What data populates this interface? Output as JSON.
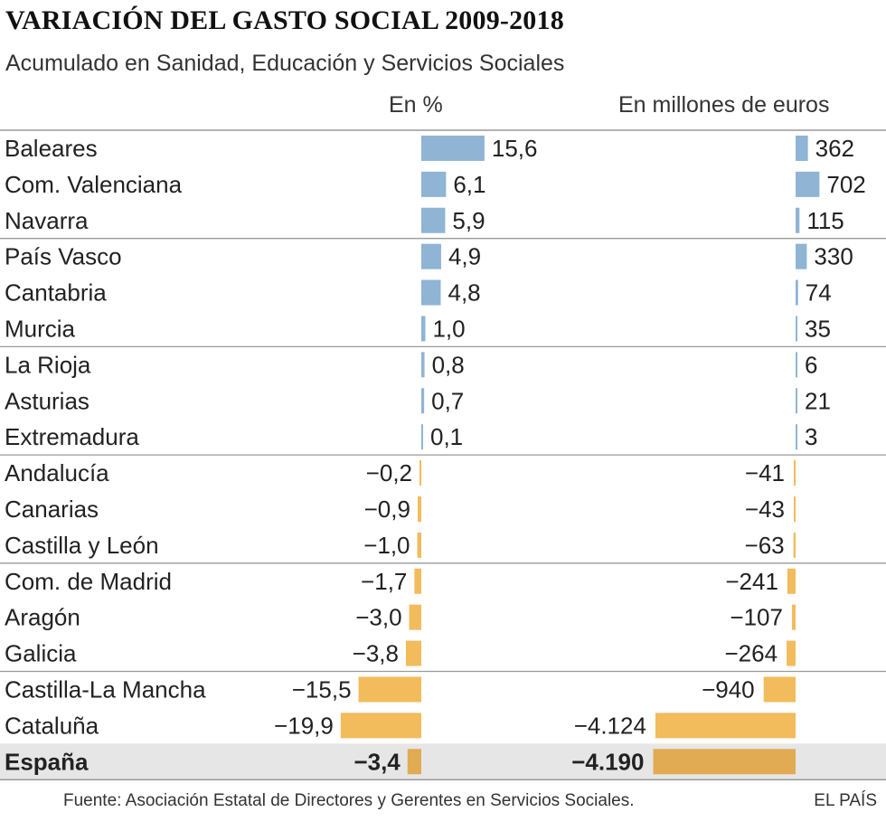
{
  "header": {
    "title": "VARIACIÓN DEL GASTO SOCIAL 2009-2018",
    "subtitle": "Acumulado en Sanidad, Educación y Servicios Sociales",
    "col_pct": "En %",
    "col_eur": "En millones de euros"
  },
  "colors": {
    "positive": "#8fb4d4",
    "negative": "#f2bb5c",
    "total": "#e1ab54",
    "total_bg": "#e6e6e6",
    "rule": "#9a9a9a"
  },
  "chart_data": {
    "type": "bar",
    "title": "VARIACIÓN DEL GASTO SOCIAL 2009-2018",
    "subtitle": "Acumulado en Sanidad, Educación y Servicios Sociales",
    "categories": [
      "Baleares",
      "Com. Valenciana",
      "Navarra",
      "País Vasco",
      "Cantabria",
      "Murcia",
      "La Rioja",
      "Asturias",
      "Extremadura",
      "Andalucía",
      "Canarias",
      "Castilla y León",
      "Com. de Madrid",
      "Aragón",
      "Galicia",
      "Castilla-La Mancha",
      "Cataluña",
      "España"
    ],
    "series": [
      {
        "name": "En %",
        "values": [
          15.6,
          6.1,
          5.9,
          4.9,
          4.8,
          1.0,
          0.8,
          0.7,
          0.1,
          -0.2,
          -0.9,
          -1.0,
          -1.7,
          -3.0,
          -3.8,
          -15.5,
          -19.9,
          -3.4
        ],
        "labels": [
          "15,6",
          "6,1",
          "5,9",
          "4,9",
          "4,8",
          "1,0",
          "0,8",
          "0,7",
          "0,1",
          "−0,2",
          "−0,9",
          "−1,0",
          "−1,7",
          "−3,0",
          "−3,8",
          "−15,5",
          "−19,9",
          "−3,4"
        ]
      },
      {
        "name": "En millones de euros",
        "values": [
          362,
          702,
          115,
          330,
          74,
          35,
          6,
          21,
          3,
          -41,
          -43,
          -63,
          -241,
          -107,
          -264,
          -940,
          -4124,
          -4190
        ],
        "labels": [
          "362",
          "702",
          "115",
          "330",
          "74",
          "35",
          "6",
          "21",
          "3",
          "−41",
          "−43",
          "−63",
          "−241",
          "−107",
          "−264",
          "−940",
          "−4.124",
          "−4.190"
        ]
      }
    ],
    "highlight_category": "España"
  },
  "footer": {
    "source": "Fuente: Asociación Estatal de Directores y Gerentes en Servicios Sociales.",
    "brand": "EL PAÍS"
  }
}
